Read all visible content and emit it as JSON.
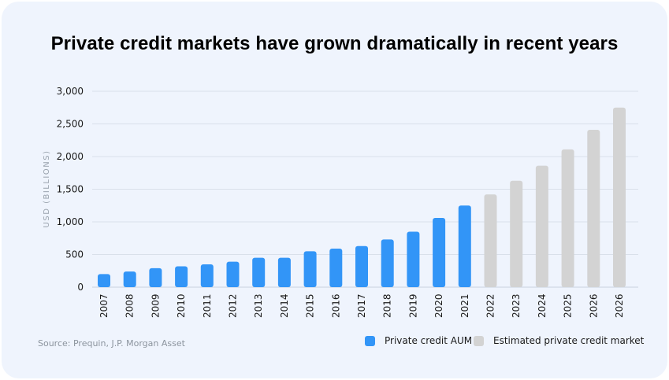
{
  "title": "Private credit markets have grown dramatically in recent years",
  "source": "Source: Prequin, J.P. Morgan Asset",
  "colors": {
    "actual": "#3295f7",
    "estimated": "#d3d3d3",
    "grid": "#d9e0ea",
    "background": "#eff4fd"
  },
  "chart_data": {
    "type": "bar",
    "title": "Private credit markets have grown dramatically in recent years",
    "xlabel": "",
    "ylabel": "USD (BILLIONS)",
    "ylim": [
      0,
      3000
    ],
    "yticks": [
      "0",
      "500",
      "1,000",
      "1,500",
      "2,000",
      "2,500",
      "3,000"
    ],
    "grid": true,
    "legend_position": "bottom-right",
    "categories": [
      "2007",
      "2008",
      "2009",
      "2010",
      "2011",
      "2012",
      "2013",
      "2014",
      "2015",
      "2016",
      "2017",
      "2018",
      "2019",
      "2020",
      "2021",
      "2022",
      "2023",
      "2024",
      "2025",
      "2026",
      "2026"
    ],
    "series": [
      {
        "name": "Private credit AUM",
        "color": "#3295f7",
        "values": [
          200,
          240,
          290,
          320,
          350,
          390,
          450,
          450,
          550,
          590,
          630,
          730,
          850,
          1060,
          1250,
          null,
          null,
          null,
          null,
          null,
          null
        ]
      },
      {
        "name": "Estimated private credit market",
        "color": "#d3d3d3",
        "values": [
          null,
          null,
          null,
          null,
          null,
          null,
          null,
          null,
          null,
          null,
          null,
          null,
          null,
          null,
          null,
          1420,
          1630,
          1860,
          2110,
          2410,
          2750
        ]
      }
    ]
  }
}
